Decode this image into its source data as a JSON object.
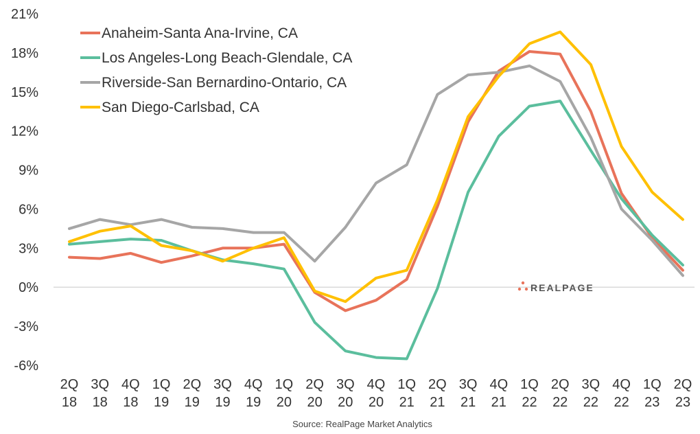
{
  "chart_data": {
    "type": "line",
    "categories": [
      "2Q 18",
      "3Q 18",
      "4Q 18",
      "1Q 19",
      "2Q 19",
      "3Q 19",
      "4Q 19",
      "1Q 20",
      "2Q 20",
      "3Q 20",
      "4Q 20",
      "1Q 21",
      "2Q 21",
      "3Q 21",
      "4Q 21",
      "1Q 22",
      "2Q 22",
      "3Q 22",
      "4Q 22",
      "1Q 23",
      "2Q 23"
    ],
    "series": [
      {
        "name": "Anaheim-Santa Ana-Irvine, CA",
        "color": "#E8735A",
        "values": [
          2.3,
          2.2,
          2.6,
          1.9,
          2.4,
          3.0,
          3.0,
          3.3,
          -0.4,
          -1.8,
          -1.0,
          0.6,
          6.2,
          12.7,
          16.6,
          18.1,
          17.9,
          13.5,
          7.2,
          3.8,
          1.3
        ]
      },
      {
        "name": "Los Angeles-Long Beach-Glendale, CA",
        "color": "#5BBE9D",
        "values": [
          3.3,
          3.5,
          3.7,
          3.6,
          2.8,
          2.1,
          1.8,
          1.4,
          -2.7,
          -4.9,
          -5.4,
          -5.5,
          -0.1,
          7.3,
          11.6,
          13.9,
          14.3,
          10.5,
          6.8,
          4.0,
          1.7
        ]
      },
      {
        "name": "Riverside-San Bernardino-Ontario, CA",
        "color": "#A6A6A6",
        "values": [
          4.5,
          5.2,
          4.8,
          5.2,
          4.6,
          4.5,
          4.2,
          4.2,
          2.0,
          4.6,
          8.0,
          9.4,
          14.8,
          16.3,
          16.5,
          17.0,
          15.8,
          11.5,
          6.0,
          3.6,
          0.9
        ]
      },
      {
        "name": "San Diego-Carlsbad, CA",
        "color": "#FFC000",
        "values": [
          3.5,
          4.3,
          4.7,
          3.2,
          2.8,
          2.0,
          3.0,
          3.8,
          -0.3,
          -1.1,
          0.7,
          1.3,
          6.7,
          13.1,
          16.2,
          18.7,
          19.6,
          17.1,
          10.8,
          7.3,
          5.2
        ]
      }
    ],
    "y_ticks": [
      -6,
      -3,
      0,
      3,
      6,
      9,
      12,
      15,
      18,
      21
    ],
    "y_tick_labels": [
      "-6%",
      "-3%",
      "0%",
      "3%",
      "6%",
      "9%",
      "12%",
      "15%",
      "18%",
      "21%"
    ],
    "ylim": [
      -6,
      21
    ],
    "grid": false,
    "legend_position": "top-left"
  },
  "source": "Source: RealPage Market Analytics",
  "logo": {
    "text": "REALPAGE"
  },
  "colors": {
    "axis": "#D9D9D9",
    "text": "#333333",
    "logo_dots": "#E8735A"
  }
}
